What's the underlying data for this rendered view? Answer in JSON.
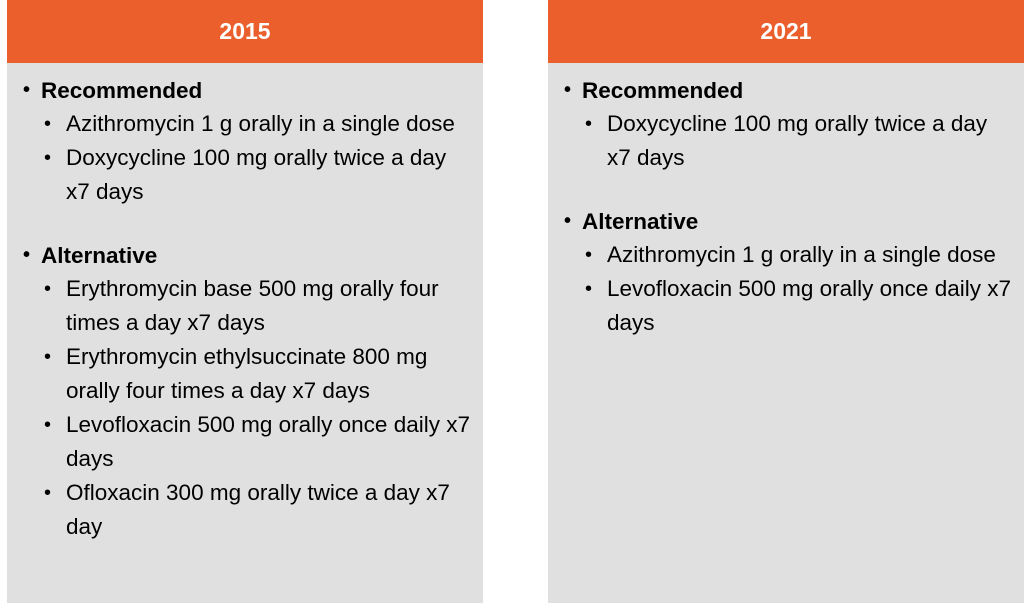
{
  "colors": {
    "header_bg": "#eb5f2d",
    "header_text": "#ffffff",
    "panel_bg": "#e0e0e0"
  },
  "columns": [
    {
      "header": "2015",
      "sections": [
        {
          "title": "Recommended",
          "items": [
            "Azithromycin 1 g orally in a single dose",
            "Doxycycline 100 mg orally twice a day x7 days"
          ]
        },
        {
          "title": "Alternative",
          "items": [
            "Erythromycin base 500 mg orally four times a day x7 days",
            "Erythromycin ethylsuccinate 800 mg orally four times a day x7 days",
            "Levofloxacin 500 mg orally once daily x7 days",
            "Ofloxacin 300 mg orally twice a day x7 day"
          ]
        }
      ]
    },
    {
      "header": "2021",
      "sections": [
        {
          "title": "Recommended",
          "items": [
            "Doxycycline 100 mg orally twice a day x7 days"
          ]
        },
        {
          "title": "Alternative",
          "items": [
            "Azithromycin 1 g orally in a single dose",
            "Levofloxacin 500 mg orally once daily x7 days"
          ]
        }
      ]
    }
  ]
}
